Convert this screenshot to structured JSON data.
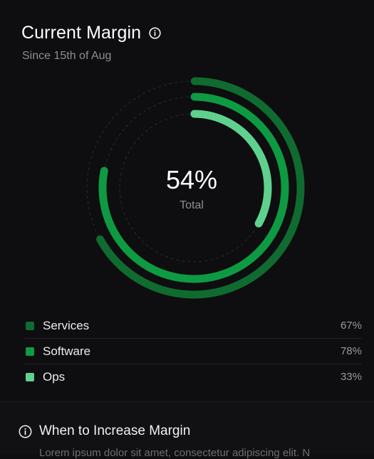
{
  "header": {
    "title": "Current Margin",
    "subtitle": "Since 15th of Aug"
  },
  "icons": {
    "title_info": "info-icon",
    "tip_info": "info-icon"
  },
  "summary": {
    "value": "54%",
    "label": "Total"
  },
  "legend": {
    "items": [
      {
        "name": "Services",
        "value": "67%",
        "color": "#0f6b2f"
      },
      {
        "name": "Software",
        "value": "78%",
        "color": "#0e9a42"
      },
      {
        "name": "Ops",
        "value": "33%",
        "color": "#5fd18e"
      }
    ]
  },
  "chart_data": {
    "type": "radial-bar",
    "series": [
      {
        "name": "Services",
        "value": 67,
        "color": "#0f6b2f"
      },
      {
        "name": "Software",
        "value": 78,
        "color": "#0e9a42"
      },
      {
        "name": "Ops",
        "value": 33,
        "color": "#5fd18e"
      }
    ],
    "max": 100,
    "center_value": "54%",
    "center_label": "Total"
  },
  "tip": {
    "title": "When to Increase Margin",
    "body": "Lorem ipsum dolor sit amet, consectetur adipiscing elit. N"
  }
}
